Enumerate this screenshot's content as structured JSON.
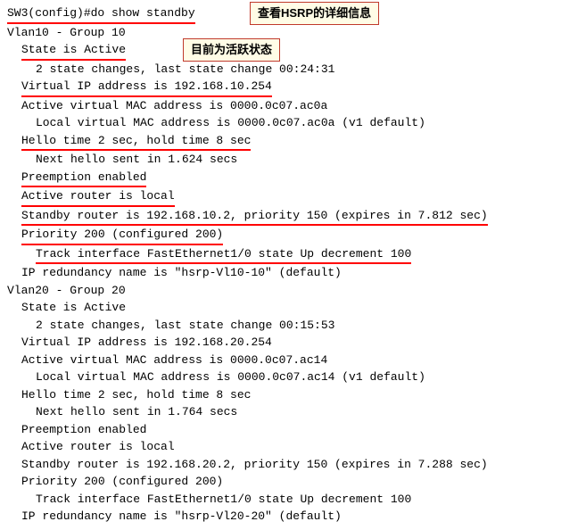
{
  "callouts": {
    "c1": "查看HSRP的详细信息",
    "c2": "目前为活跃状态"
  },
  "colors": {
    "underline": "#ff0000",
    "callout_bg": "#fffce6",
    "callout_border": "#c0392b",
    "text": "#000000",
    "bg": "#ffffff"
  },
  "terminal": {
    "prompt_line": "SW3(config)#do show standby",
    "group1": {
      "header": "Vlan10 - Group 10",
      "state": "State is Active",
      "state_changes": "2 state changes, last state change 00:24:31",
      "vip": "Virtual IP address is 192.168.10.254",
      "active_mac": "Active virtual MAC address is 0000.0c07.ac0a",
      "local_mac": "Local virtual MAC address is 0000.0c07.ac0a (v1 default)",
      "hello": "Hello time 2 sec, hold time 8 sec",
      "next_hello": "Next hello sent in 1.624 secs",
      "preemption": "Preemption enabled",
      "active_router": "Active router is local",
      "standby_router": "Standby router is 192.168.10.2, priority 150 (expires in 7.812 sec)",
      "priority": "Priority 200 (configured 200)",
      "track": "Track interface FastEthernet1/0 state Up decrement 100",
      "redundancy": "IP redundancy name is \"hsrp-Vl10-10\" (default)"
    },
    "group2": {
      "header": "Vlan20 - Group 20",
      "state": "State is Active",
      "state_changes": "2 state changes, last state change 00:15:53",
      "vip": "Virtual IP address is 192.168.20.254",
      "active_mac": "Active virtual MAC address is 0000.0c07.ac14",
      "local_mac": "Local virtual MAC address is 0000.0c07.ac14 (v1 default)",
      "hello": "Hello time 2 sec, hold time 8 sec",
      "next_hello": "Next hello sent in 1.764 secs",
      "preemption": "Preemption enabled",
      "active_router": "Active router is local",
      "standby_router": "Standby router is 192.168.20.2, priority 150 (expires in 7.288 sec)",
      "priority": "Priority 200 (configured 200)",
      "track": "Track interface FastEthernet1/0 state Up decrement 100",
      "redundancy": "IP redundancy name is \"hsrp-Vl20-20\" (default)"
    }
  }
}
